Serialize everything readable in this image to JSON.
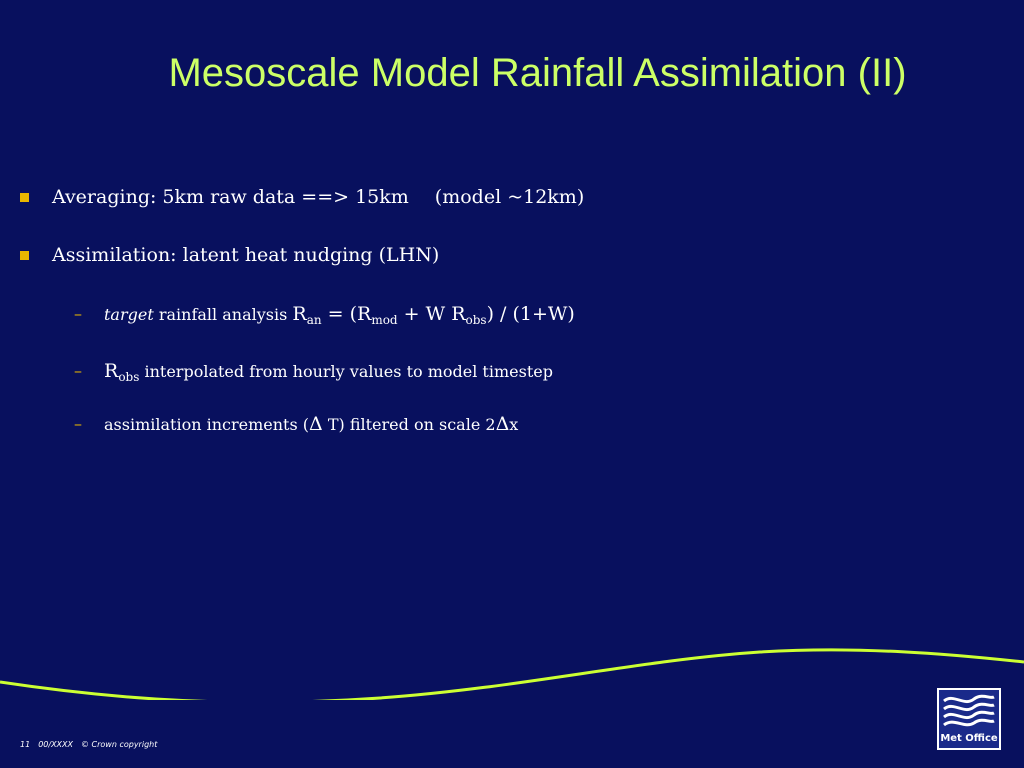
{
  "slide": {
    "title": "Mesoscale Model Rainfall Assimilation (II)",
    "bullets": [
      {
        "label": "Averaging:  5km raw data ==> 15km",
        "note": "(model ~12km)"
      },
      {
        "label": "Assimilation:  latent heat nudging (LHN)"
      }
    ],
    "sub_items": {
      "target": {
        "italic": "target",
        "text": " rainfall analysis ",
        "r": "R",
        "an": "an",
        "eq": " = (R",
        "mod": "mod",
        "plus": " + W R",
        "obs": "obs",
        "end": ") / (1+W)"
      },
      "robs": {
        "r": "R",
        "obs": "obs",
        "text": " interpolated from hourly values to model timestep"
      },
      "increments": {
        "text": "assimilation increments (",
        "delta": "Δ",
        "t": " T)  filtered on scale 2",
        "delta2": "Δ",
        "x": "x"
      }
    },
    "dash": "–"
  },
  "footer": {
    "page": "11",
    "code": "00/XXXX",
    "copyright": "© Crown copyright"
  },
  "logo": {
    "text": "Met Office"
  },
  "colors": {
    "background": "#08105e",
    "title": "#ccff66",
    "bullet": "#e8b600",
    "wave": "#ccff33"
  }
}
